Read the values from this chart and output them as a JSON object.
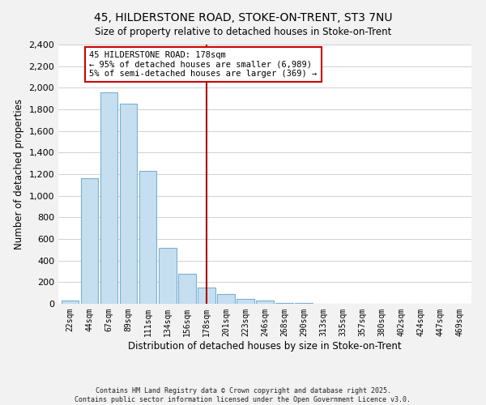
{
  "title": "45, HILDERSTONE ROAD, STOKE-ON-TRENT, ST3 7NU",
  "subtitle": "Size of property relative to detached houses in Stoke-on-Trent",
  "xlabel": "Distribution of detached houses by size in Stoke-on-Trent",
  "ylabel": "Number of detached properties",
  "bar_labels": [
    "22sqm",
    "44sqm",
    "67sqm",
    "89sqm",
    "111sqm",
    "134sqm",
    "156sqm",
    "178sqm",
    "201sqm",
    "223sqm",
    "246sqm",
    "268sqm",
    "290sqm",
    "313sqm",
    "335sqm",
    "357sqm",
    "380sqm",
    "402sqm",
    "424sqm",
    "447sqm",
    "469sqm"
  ],
  "bar_values": [
    30,
    1160,
    1960,
    1850,
    1230,
    520,
    275,
    148,
    88,
    45,
    30,
    10,
    5,
    2,
    1,
    0,
    0,
    0,
    0,
    0,
    0
  ],
  "bar_color": "#c6dff0",
  "bar_edge_color": "#7bafd4",
  "vline_x_index": 7,
  "vline_color": "#aa0000",
  "ylim": [
    0,
    2400
  ],
  "yticks": [
    0,
    200,
    400,
    600,
    800,
    1000,
    1200,
    1400,
    1600,
    1800,
    2000,
    2200,
    2400
  ],
  "annotation_line1": "45 HILDERSTONE ROAD: 178sqm",
  "annotation_line2": "← 95% of detached houses are smaller (6,989)",
  "annotation_line3": "5% of semi-detached houses are larger (369) →",
  "annotation_box_color": "#ffffff",
  "annotation_box_edge": "#cc0000",
  "footer1": "Contains HM Land Registry data © Crown copyright and database right 2025.",
  "footer2": "Contains public sector information licensed under the Open Government Licence v3.0.",
  "bg_color": "#f2f2f2",
  "plot_bg_color": "#ffffff",
  "grid_color": "#d0d0d0"
}
